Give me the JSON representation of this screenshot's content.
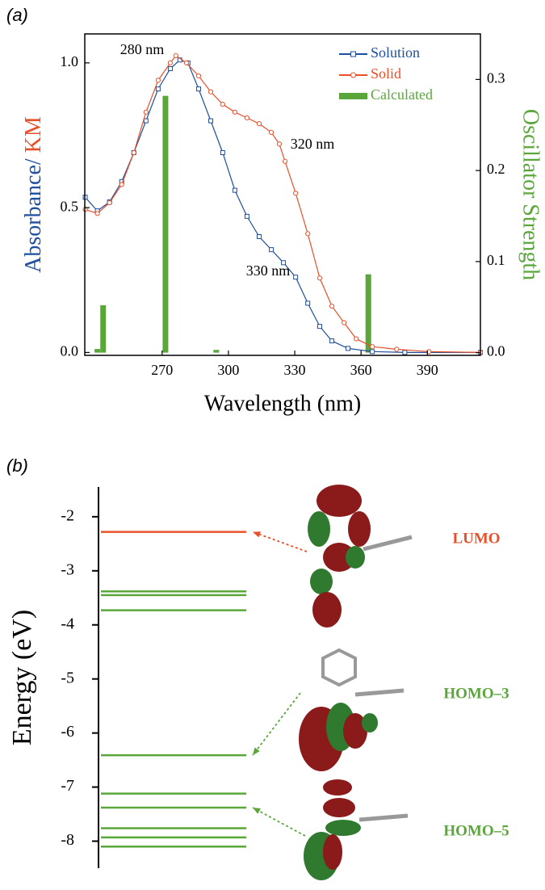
{
  "chart_data": [
    {
      "type": "line",
      "panel_label": "(a)",
      "x_label": "Wavelength (nm)",
      "y_label_parts": [
        {
          "text": "Absorbance/",
          "color": "#1f4e9c"
        },
        {
          "text": "KM",
          "color": "#e8502a"
        }
      ],
      "y2_label": "Oscillator Strength",
      "y2_label_color": "#5aa63a",
      "xlim": [
        235,
        414
      ],
      "xticks": [
        270,
        300,
        330,
        360,
        390
      ],
      "ylim": [
        -0.01,
        1.1
      ],
      "yticks": [
        {
          "value": 0,
          "label": "0.0"
        },
        {
          "value": 0.5,
          "label": "0.5"
        },
        {
          "value": 1,
          "label": "1.0"
        }
      ],
      "y2lim": [
        -0.003,
        0.35
      ],
      "y2ticks": [
        {
          "value": 0,
          "label": "0.0"
        },
        {
          "value": 0.1,
          "label": "0.1"
        },
        {
          "value": 0.2,
          "label": "0.2"
        },
        {
          "value": 0.3,
          "label": "0.3"
        }
      ],
      "annotations": [
        "280 nm",
        "320 nm",
        "330 nm"
      ],
      "legend": "upper right",
      "series": [
        {
          "name": "Solution",
          "color": "#1f4e9c",
          "marker": "square",
          "x": [
            235.2,
            240.7,
            246.2,
            251.7,
            257.2,
            262.7,
            268.2,
            273.7,
            278.0,
            281.7,
            286.5,
            292.0,
            297.4,
            302.9,
            308.4,
            313.9,
            319.4,
            324.9,
            330.4,
            335.9,
            341.3,
            346.8,
            354.1,
            365.1,
            379.8,
            414
          ],
          "values": [
            0.536,
            0.489,
            0.52,
            0.59,
            0.69,
            0.8,
            0.91,
            0.98,
            1.01,
            1.0,
            0.91,
            0.8,
            0.69,
            0.56,
            0.47,
            0.4,
            0.355,
            0.31,
            0.26,
            0.17,
            0.09,
            0.04,
            0.014,
            0.003,
            0,
            0
          ]
        },
        {
          "name": "Solid",
          "color": "#e8502a",
          "marker": "circle",
          "x": [
            235.2,
            240.7,
            246.2,
            251.7,
            257.2,
            262.7,
            268.2,
            273.7,
            276.2,
            281.0,
            286.5,
            292.0,
            297.4,
            302.9,
            308.4,
            313.9,
            319.4,
            323.0,
            325.6,
            330.4,
            335.9,
            341.3,
            346.8,
            352.3,
            357.8,
            365.1,
            376.1,
            390.7,
            414
          ],
          "values": [
            0.494,
            0.48,
            0.517,
            0.58,
            0.69,
            0.83,
            0.94,
            1.0,
            1.025,
            1.0,
            0.955,
            0.9,
            0.857,
            0.83,
            0.81,
            0.79,
            0.76,
            0.72,
            0.66,
            0.55,
            0.41,
            0.257,
            0.16,
            0.103,
            0.047,
            0.02,
            0.011,
            0.003,
            0
          ]
        },
        {
          "name": "Calculated",
          "color": "#5aa63a",
          "type": "bar",
          "axis": "y2",
          "x": [
            240.7,
            243.3,
            271.5,
            294.5,
            363.3
          ],
          "values": [
            0.004,
            0.052,
            0.282,
            0.003,
            0.086
          ]
        }
      ]
    },
    {
      "type": "energy_levels",
      "panel_label": "(b)",
      "y_label": "Energy (eV)",
      "ylim": [
        -8.5,
        -1.45
      ],
      "yticks": [
        -2,
        -3,
        -4,
        -5,
        -6,
        -7,
        -8
      ],
      "values": [
        -2.28,
        -3.38,
        -3.45,
        -3.73,
        -6.41,
        -7.12,
        -7.38,
        -7.76,
        -7.93,
        -8.1
      ],
      "colors": [
        "#e8502a",
        "#5aa63a",
        "#5aa63a",
        "#5aa63a",
        "#5aa63a",
        "#5aa63a",
        "#5aa63a",
        "#5aa63a",
        "#5aa63a",
        "#5aa63a"
      ],
      "annotations": [
        {
          "text": "LUMO",
          "color": "#e8502a"
        },
        {
          "text": "HOMO–3",
          "color": "#5aa63a"
        },
        {
          "text": "HOMO–5",
          "color": "#5aa63a"
        }
      ]
    }
  ]
}
